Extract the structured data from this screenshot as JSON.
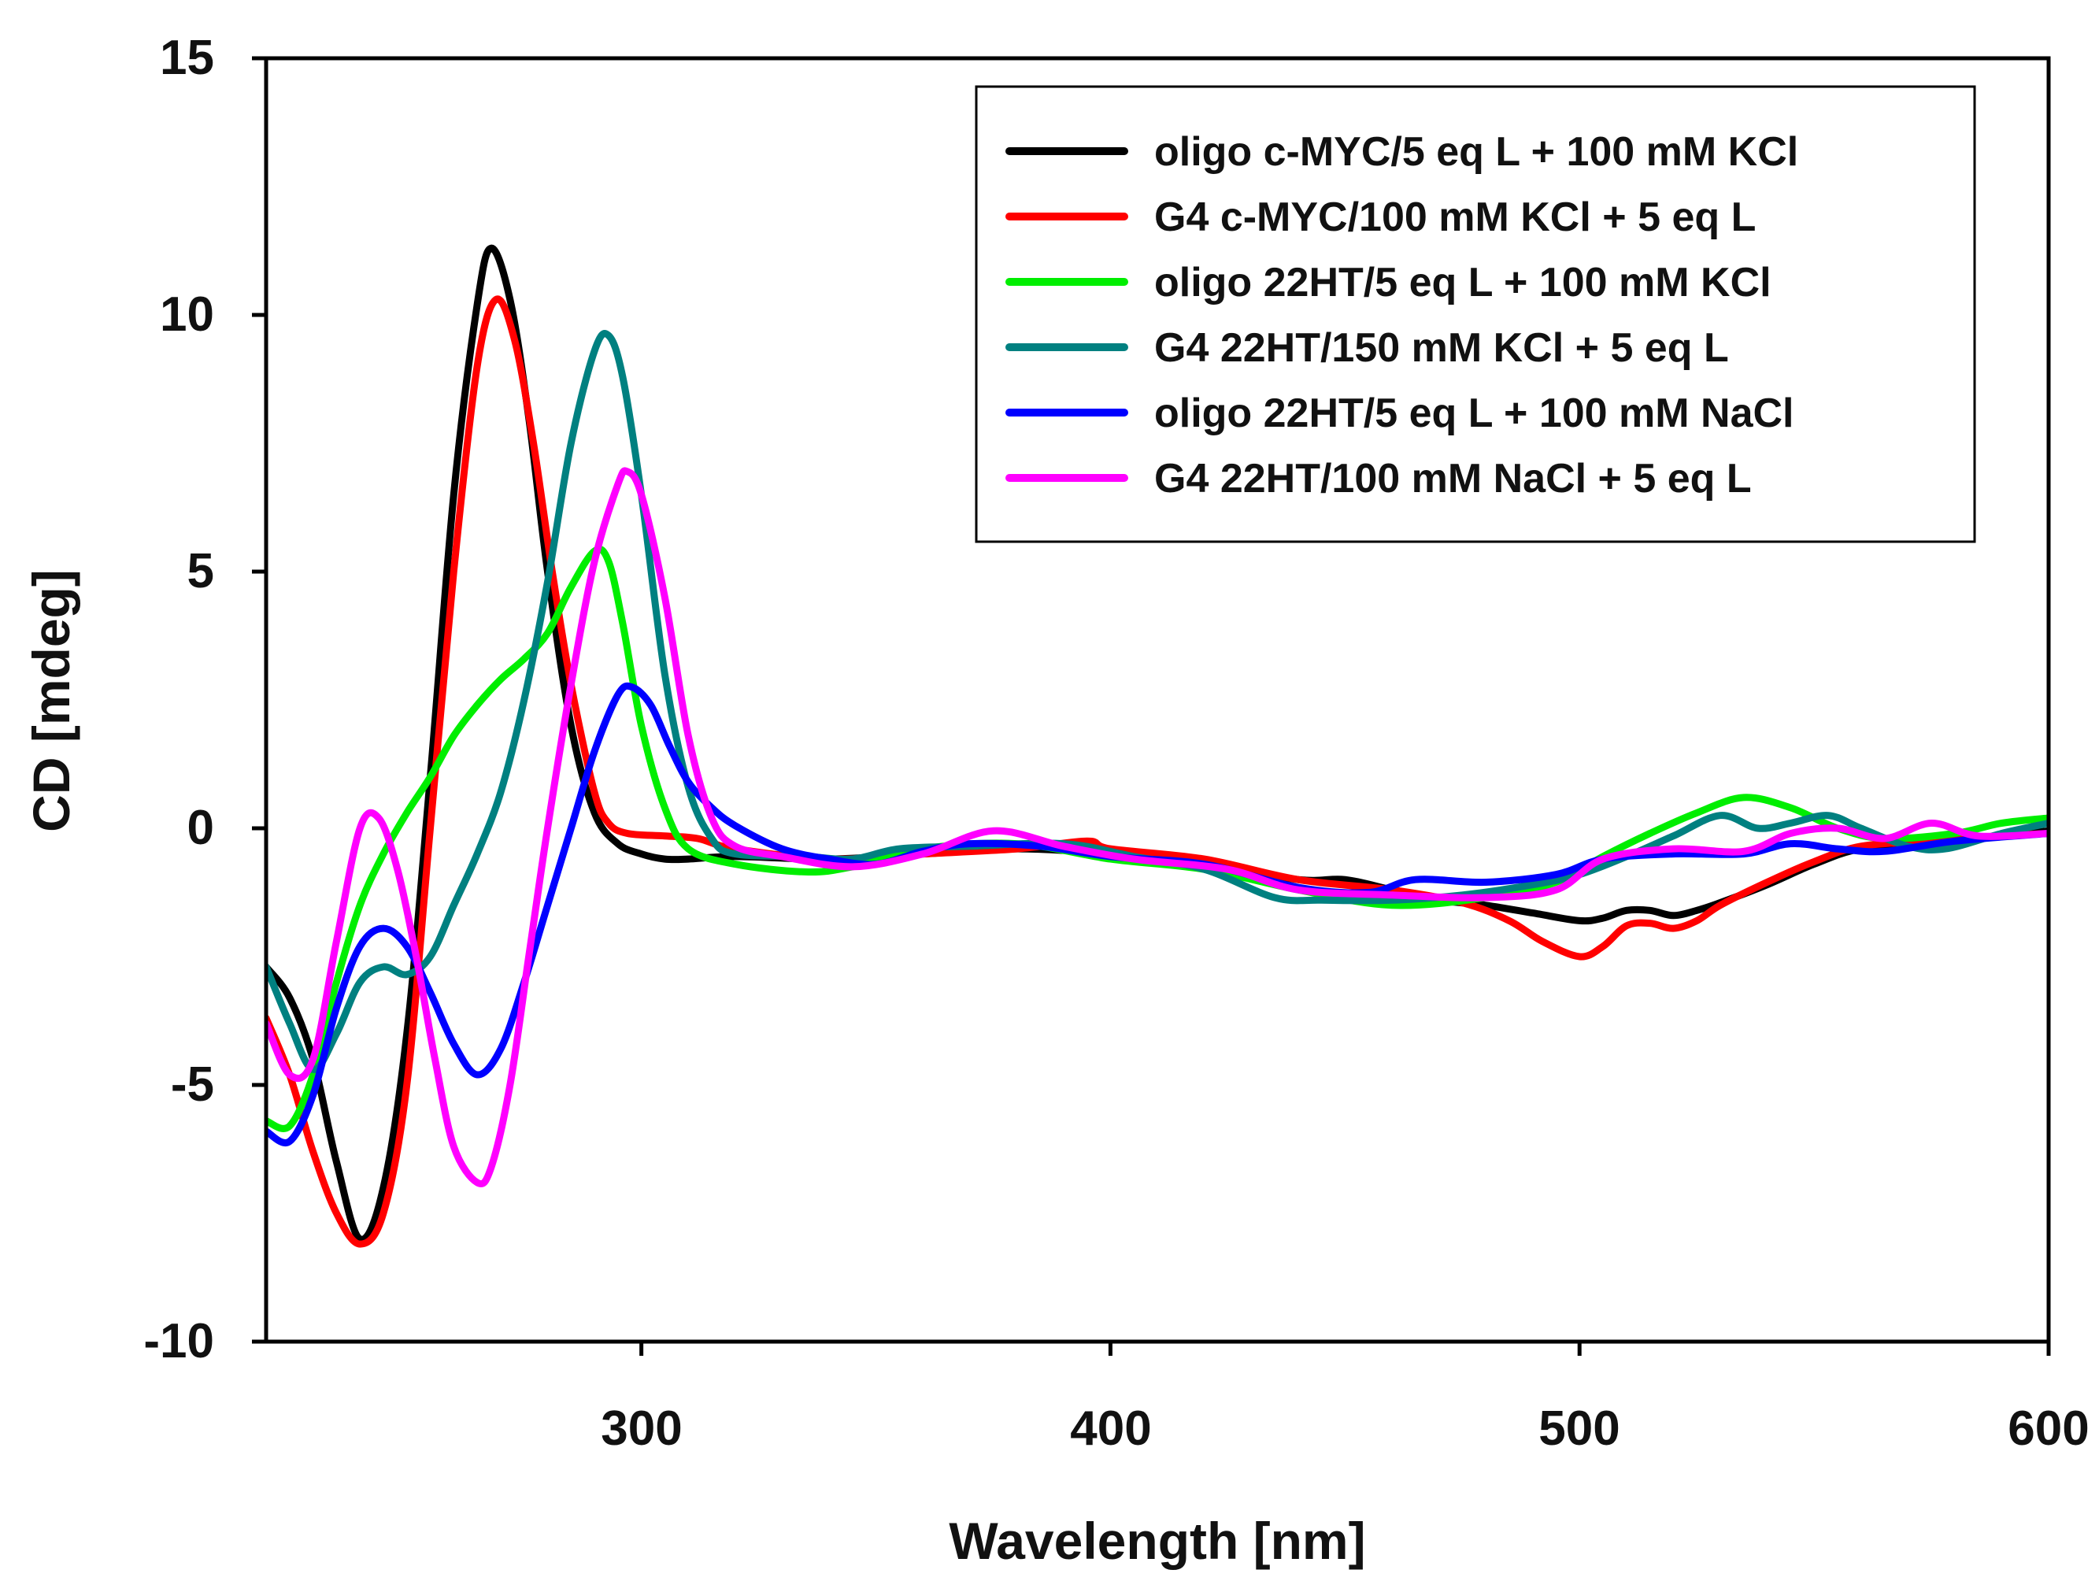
{
  "chart_data": {
    "type": "line",
    "title": "",
    "xlabel": "Wavelength [nm]",
    "ylabel": "CD [mdeg]",
    "xlim": [
      220,
      600
    ],
    "ylim": [
      -10,
      15
    ],
    "xticks": [
      300,
      400,
      500,
      600
    ],
    "yticks": [
      -10,
      -5,
      0,
      5,
      10,
      15
    ],
    "xtick_labels": [
      "300",
      "400",
      "500",
      "600"
    ],
    "ytick_labels": [
      "-10",
      "-5",
      "0",
      "5",
      "10",
      "15"
    ],
    "grid": false,
    "legend_position": "top-right",
    "series": [
      {
        "name": "oligo c-MYC/5 eq L + 100 mM KCl",
        "color": "#000000",
        "points": [
          [
            220,
            -2.7
          ],
          [
            225,
            -3.3
          ],
          [
            230,
            -4.5
          ],
          [
            235,
            -6.5
          ],
          [
            240,
            -8.0
          ],
          [
            245,
            -7.0
          ],
          [
            250,
            -4.0
          ],
          [
            255,
            1.0
          ],
          [
            260,
            6.5
          ],
          [
            265,
            10.2
          ],
          [
            268,
            11.3
          ],
          [
            272,
            10.3
          ],
          [
            276,
            8.0
          ],
          [
            280,
            5.0
          ],
          [
            285,
            2.0
          ],
          [
            290,
            0.3
          ],
          [
            295,
            -0.3
          ],
          [
            300,
            -0.5
          ],
          [
            305,
            -0.6
          ],
          [
            310,
            -0.6
          ],
          [
            320,
            -0.55
          ],
          [
            340,
            -0.6
          ],
          [
            360,
            -0.5
          ],
          [
            380,
            -0.4
          ],
          [
            400,
            -0.5
          ],
          [
            420,
            -0.7
          ],
          [
            440,
            -1.0
          ],
          [
            450,
            -1.0
          ],
          [
            460,
            -1.2
          ],
          [
            470,
            -1.4
          ],
          [
            480,
            -1.5
          ],
          [
            490,
            -1.65
          ],
          [
            500,
            -1.8
          ],
          [
            505,
            -1.75
          ],
          [
            510,
            -1.6
          ],
          [
            515,
            -1.6
          ],
          [
            520,
            -1.7
          ],
          [
            525,
            -1.6
          ],
          [
            530,
            -1.45
          ],
          [
            540,
            -1.1
          ],
          [
            550,
            -0.7
          ],
          [
            560,
            -0.4
          ],
          [
            575,
            -0.3
          ],
          [
            590,
            -0.15
          ],
          [
            600,
            -0.05
          ]
        ]
      },
      {
        "name": "G4 c-MYC/100 mM KCl + 5 eq L",
        "color": "#ff0000",
        "points": [
          [
            220,
            -3.7
          ],
          [
            225,
            -4.8
          ],
          [
            230,
            -6.3
          ],
          [
            235,
            -7.5
          ],
          [
            240,
            -8.1
          ],
          [
            245,
            -7.5
          ],
          [
            250,
            -5.0
          ],
          [
            255,
            0.0
          ],
          [
            260,
            5.0
          ],
          [
            265,
            9.0
          ],
          [
            269,
            10.3
          ],
          [
            273,
            9.5
          ],
          [
            277,
            7.5
          ],
          [
            281,
            5.0
          ],
          [
            285,
            2.8
          ],
          [
            290,
            0.7
          ],
          [
            293,
            0.1
          ],
          [
            297,
            -0.1
          ],
          [
            305,
            -0.15
          ],
          [
            312,
            -0.2
          ],
          [
            320,
            -0.4
          ],
          [
            340,
            -0.6
          ],
          [
            360,
            -0.5
          ],
          [
            380,
            -0.4
          ],
          [
            395,
            -0.25
          ],
          [
            400,
            -0.4
          ],
          [
            420,
            -0.6
          ],
          [
            440,
            -1.0
          ],
          [
            460,
            -1.2
          ],
          [
            475,
            -1.45
          ],
          [
            485,
            -1.8
          ],
          [
            492,
            -2.2
          ],
          [
            500,
            -2.5
          ],
          [
            505,
            -2.3
          ],
          [
            510,
            -1.9
          ],
          [
            515,
            -1.85
          ],
          [
            520,
            -1.95
          ],
          [
            525,
            -1.8
          ],
          [
            530,
            -1.5
          ],
          [
            540,
            -1.05
          ],
          [
            550,
            -0.65
          ],
          [
            560,
            -0.35
          ],
          [
            575,
            -0.25
          ],
          [
            590,
            -0.15
          ],
          [
            600,
            -0.1
          ]
        ]
      },
      {
        "name": "oligo 22HT/5 eq L + 100 mM KCl",
        "color": "#00ee00",
        "points": [
          [
            220,
            -5.7
          ],
          [
            225,
            -5.8
          ],
          [
            230,
            -4.8
          ],
          [
            235,
            -3.0
          ],
          [
            240,
            -1.5
          ],
          [
            245,
            -0.5
          ],
          [
            250,
            0.3
          ],
          [
            255,
            1.0
          ],
          [
            260,
            1.8
          ],
          [
            265,
            2.4
          ],
          [
            270,
            2.9
          ],
          [
            275,
            3.3
          ],
          [
            280,
            3.8
          ],
          [
            285,
            4.7
          ],
          [
            290,
            5.4
          ],
          [
            293,
            5.2
          ],
          [
            296,
            4.0
          ],
          [
            300,
            2.0
          ],
          [
            305,
            0.4
          ],
          [
            310,
            -0.4
          ],
          [
            320,
            -0.7
          ],
          [
            335,
            -0.85
          ],
          [
            345,
            -0.75
          ],
          [
            360,
            -0.4
          ],
          [
            380,
            -0.3
          ],
          [
            400,
            -0.6
          ],
          [
            420,
            -0.8
          ],
          [
            440,
            -1.2
          ],
          [
            460,
            -1.5
          ],
          [
            480,
            -1.35
          ],
          [
            495,
            -1.05
          ],
          [
            505,
            -0.55
          ],
          [
            515,
            -0.1
          ],
          [
            525,
            0.3
          ],
          [
            535,
            0.6
          ],
          [
            545,
            0.4
          ],
          [
            555,
            0.0
          ],
          [
            565,
            -0.2
          ],
          [
            580,
            -0.1
          ],
          [
            590,
            0.1
          ],
          [
            600,
            0.2
          ]
        ]
      },
      {
        "name": "G4 22HT/150 mM KCl + 5 eq L",
        "color": "#008080",
        "points": [
          [
            220,
            -2.7
          ],
          [
            225,
            -3.8
          ],
          [
            230,
            -4.7
          ],
          [
            235,
            -4.0
          ],
          [
            240,
            -3.0
          ],
          [
            245,
            -2.7
          ],
          [
            250,
            -2.85
          ],
          [
            255,
            -2.5
          ],
          [
            260,
            -1.5
          ],
          [
            265,
            -0.5
          ],
          [
            270,
            0.7
          ],
          [
            275,
            2.5
          ],
          [
            280,
            4.8
          ],
          [
            285,
            7.5
          ],
          [
            290,
            9.3
          ],
          [
            293,
            9.6
          ],
          [
            296,
            8.8
          ],
          [
            300,
            6.5
          ],
          [
            305,
            3.0
          ],
          [
            310,
            0.8
          ],
          [
            315,
            -0.2
          ],
          [
            320,
            -0.5
          ],
          [
            335,
            -0.55
          ],
          [
            345,
            -0.6
          ],
          [
            355,
            -0.4
          ],
          [
            370,
            -0.35
          ],
          [
            390,
            -0.3
          ],
          [
            405,
            -0.55
          ],
          [
            420,
            -0.8
          ],
          [
            435,
            -1.35
          ],
          [
            445,
            -1.4
          ],
          [
            460,
            -1.4
          ],
          [
            475,
            -1.3
          ],
          [
            490,
            -1.1
          ],
          [
            500,
            -0.9
          ],
          [
            510,
            -0.55
          ],
          [
            520,
            -0.15
          ],
          [
            530,
            0.25
          ],
          [
            538,
            0.0
          ],
          [
            545,
            0.1
          ],
          [
            553,
            0.25
          ],
          [
            560,
            0.0
          ],
          [
            570,
            -0.35
          ],
          [
            578,
            -0.4
          ],
          [
            590,
            -0.1
          ],
          [
            600,
            0.1
          ]
        ]
      },
      {
        "name": "oligo 22HT/5 eq L + 100 mM NaCl",
        "color": "#0000ff",
        "points": [
          [
            220,
            -5.9
          ],
          [
            225,
            -6.1
          ],
          [
            230,
            -5.2
          ],
          [
            235,
            -3.5
          ],
          [
            240,
            -2.3
          ],
          [
            245,
            -1.95
          ],
          [
            250,
            -2.3
          ],
          [
            255,
            -3.2
          ],
          [
            260,
            -4.2
          ],
          [
            265,
            -4.8
          ],
          [
            270,
            -4.3
          ],
          [
            275,
            -3.0
          ],
          [
            280,
            -1.5
          ],
          [
            285,
            0.0
          ],
          [
            290,
            1.5
          ],
          [
            295,
            2.6
          ],
          [
            298,
            2.75
          ],
          [
            302,
            2.4
          ],
          [
            306,
            1.6
          ],
          [
            310,
            0.9
          ],
          [
            315,
            0.4
          ],
          [
            320,
            0.05
          ],
          [
            330,
            -0.4
          ],
          [
            340,
            -0.6
          ],
          [
            350,
            -0.7
          ],
          [
            360,
            -0.45
          ],
          [
            370,
            -0.3
          ],
          [
            385,
            -0.35
          ],
          [
            400,
            -0.55
          ],
          [
            420,
            -0.7
          ],
          [
            440,
            -1.15
          ],
          [
            455,
            -1.25
          ],
          [
            465,
            -1.0
          ],
          [
            480,
            -1.05
          ],
          [
            495,
            -0.9
          ],
          [
            505,
            -0.6
          ],
          [
            520,
            -0.5
          ],
          [
            535,
            -0.5
          ],
          [
            545,
            -0.3
          ],
          [
            555,
            -0.4
          ],
          [
            565,
            -0.45
          ],
          [
            580,
            -0.25
          ],
          [
            600,
            -0.1
          ]
        ]
      },
      {
        "name": "G4 22HT/100 mM NaCl + 5 eq L",
        "color": "#ff00ff",
        "points": [
          [
            220,
            -3.8
          ],
          [
            225,
            -4.8
          ],
          [
            230,
            -4.5
          ],
          [
            235,
            -2.2
          ],
          [
            240,
            0.0
          ],
          [
            244,
            0.2
          ],
          [
            248,
            -0.8
          ],
          [
            252,
            -2.5
          ],
          [
            256,
            -4.5
          ],
          [
            260,
            -6.2
          ],
          [
            265,
            -6.9
          ],
          [
            268,
            -6.6
          ],
          [
            272,
            -5.0
          ],
          [
            276,
            -2.5
          ],
          [
            280,
            0.0
          ],
          [
            285,
            2.8
          ],
          [
            290,
            5.2
          ],
          [
            295,
            6.7
          ],
          [
            297,
            6.95
          ],
          [
            300,
            6.5
          ],
          [
            305,
            4.5
          ],
          [
            310,
            1.8
          ],
          [
            315,
            0.2
          ],
          [
            320,
            -0.35
          ],
          [
            330,
            -0.55
          ],
          [
            345,
            -0.75
          ],
          [
            360,
            -0.5
          ],
          [
            375,
            -0.05
          ],
          [
            390,
            -0.35
          ],
          [
            405,
            -0.6
          ],
          [
            425,
            -0.8
          ],
          [
            440,
            -1.2
          ],
          [
            460,
            -1.3
          ],
          [
            480,
            -1.35
          ],
          [
            495,
            -1.2
          ],
          [
            505,
            -0.6
          ],
          [
            520,
            -0.4
          ],
          [
            535,
            -0.45
          ],
          [
            545,
            -0.1
          ],
          [
            555,
            0.0
          ],
          [
            565,
            -0.2
          ],
          [
            575,
            0.1
          ],
          [
            585,
            -0.15
          ],
          [
            600,
            -0.1
          ]
        ]
      }
    ]
  }
}
